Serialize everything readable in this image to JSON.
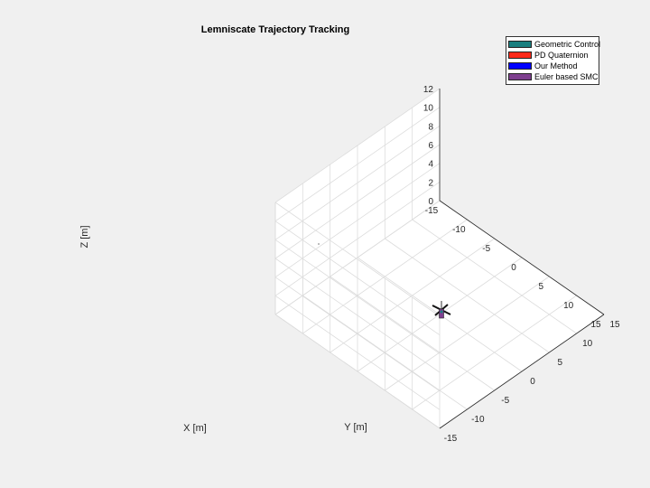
{
  "chart_data": {
    "type": "line3d",
    "title": "Lemniscate Trajectory Tracking",
    "xlabel": "X [m]",
    "ylabel": "Y [m]",
    "zlabel": "Z [m]",
    "xlim": [
      -15,
      15
    ],
    "ylim": [
      -15,
      15
    ],
    "zlim": [
      0,
      12
    ],
    "xticks": [
      -15,
      -10,
      -5,
      0,
      5,
      10,
      15
    ],
    "yticks": [
      -15,
      -10,
      -5,
      0,
      5,
      10,
      15
    ],
    "zticks": [
      0,
      2,
      4,
      6,
      8,
      10,
      12
    ],
    "xtick_labels": [
      "-15",
      "-10",
      "-5",
      "0",
      "5",
      "10",
      "15"
    ],
    "ytick_labels": [
      "-15",
      "-10",
      "-5",
      "0",
      "5",
      "10",
      "15"
    ],
    "ztick_labels": [
      "0",
      "2",
      "4",
      "6",
      "8",
      "10",
      "12"
    ],
    "grid": true,
    "legend_position": "top-right",
    "series": [
      {
        "name": "Geometric Control",
        "color": "#1a7f7f"
      },
      {
        "name": "PD Quaternion",
        "color": "#ff2a1a"
      },
      {
        "name": "Our Method",
        "color": "#0000ff"
      },
      {
        "name": "Euler based SMC",
        "color": "#7e3f8f"
      }
    ]
  }
}
